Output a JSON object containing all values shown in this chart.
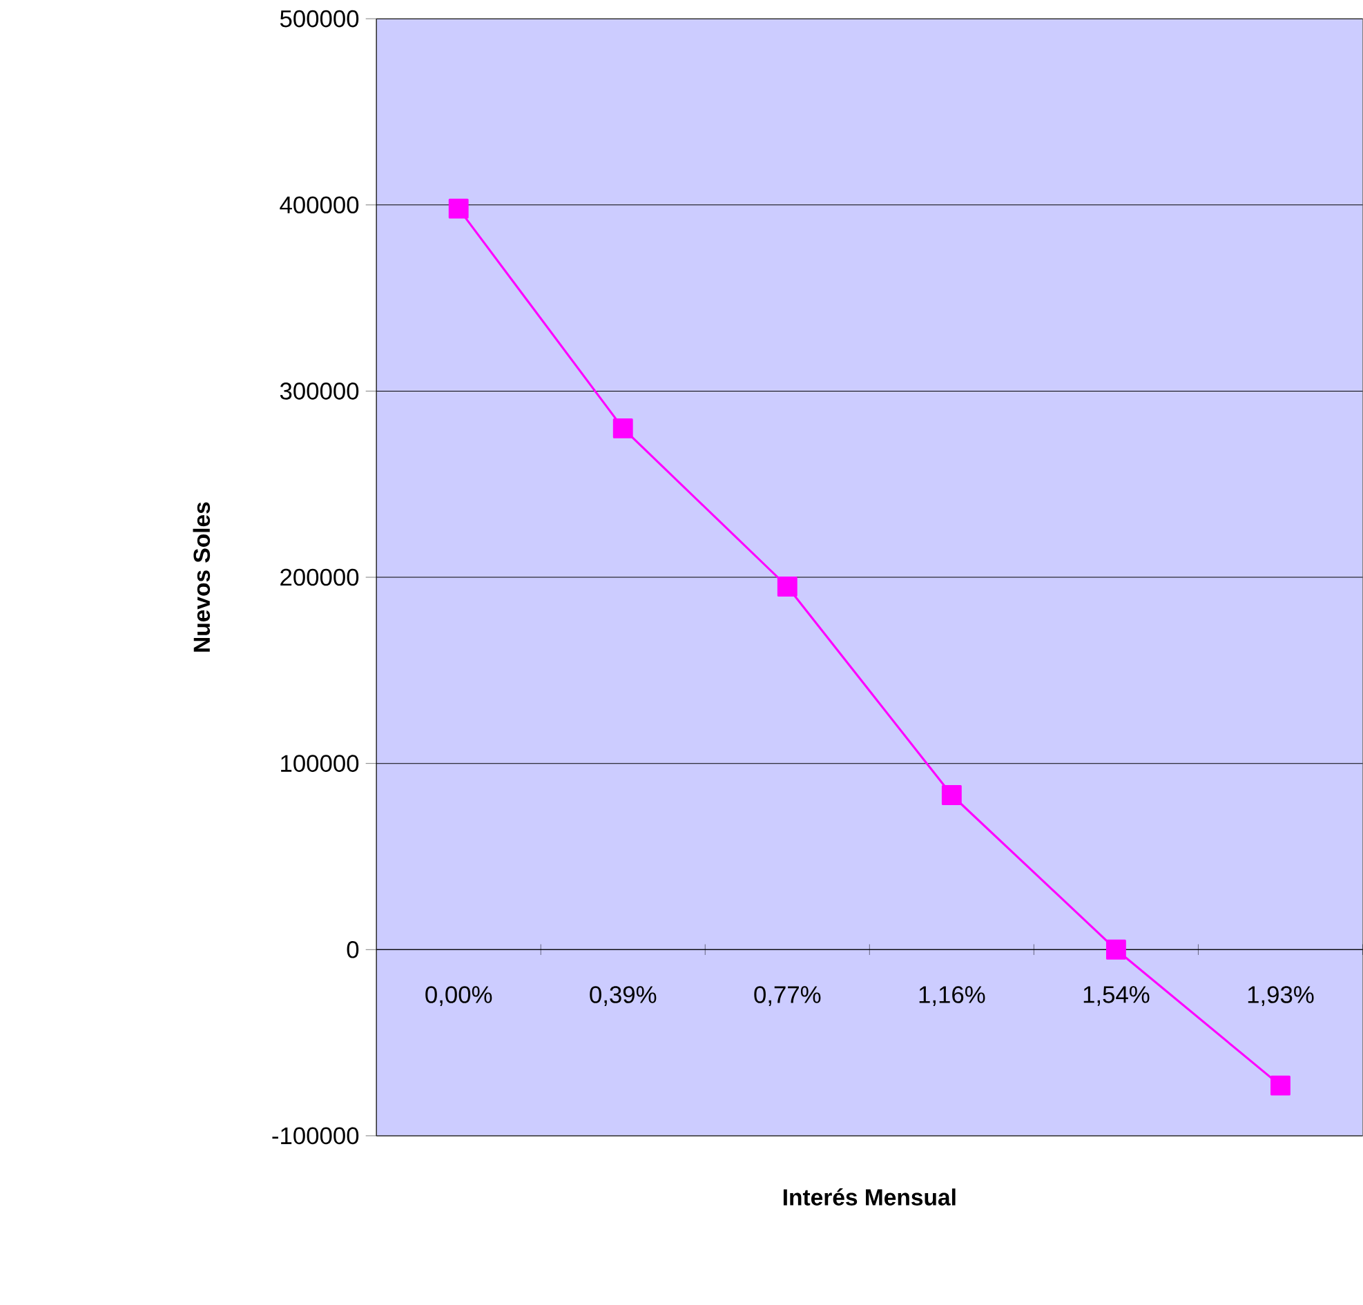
{
  "chart_data": {
    "type": "line",
    "xlabel": "Interés Mensual",
    "ylabel": "Nuevos Soles",
    "categories": [
      "0,00%",
      "0,39%",
      "0,77%",
      "1,16%",
      "1,54%",
      "1,93%"
    ],
    "series": [
      {
        "color": "#ff00ff",
        "values": [
          398000,
          280000,
          195000,
          83000,
          0,
          -73000
        ]
      }
    ],
    "ylim": [
      -100000,
      500000
    ],
    "yticks": [
      -100000,
      0,
      100000,
      200000,
      300000,
      400000,
      500000
    ],
    "grid": "y",
    "marker": "square",
    "line_style": "solid"
  }
}
